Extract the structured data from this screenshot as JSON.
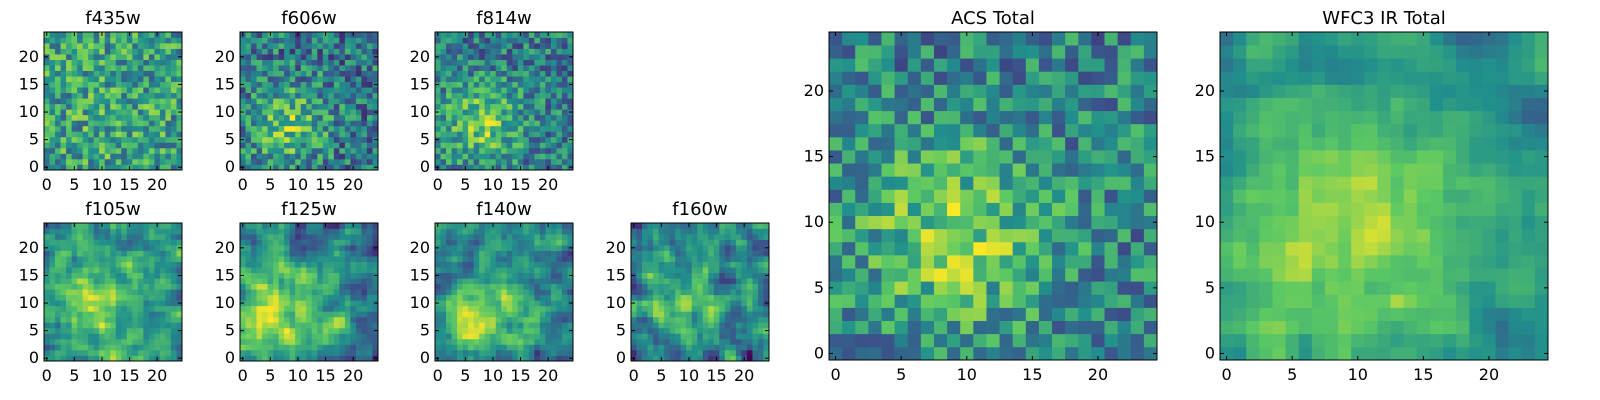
{
  "figure": {
    "colormap": [
      "#440154",
      "#3b528b",
      "#21908c",
      "#5dc963",
      "#fde725"
    ],
    "grid": false
  },
  "chart_data": [
    {
      "type": "heatmap",
      "title": "f435w",
      "size": 25,
      "xlim": [
        0,
        24
      ],
      "ylim": [
        0,
        24
      ],
      "xticks": [
        0,
        5,
        10,
        15,
        20
      ],
      "yticks": [
        0,
        5,
        10,
        15,
        20
      ],
      "blob": {
        "cx": 10,
        "cy": 10,
        "sigma": 8,
        "amp": 0.05
      },
      "noise": 0.55,
      "smooth": 0,
      "base": 0.55,
      "seed": 11
    },
    {
      "type": "heatmap",
      "title": "f606w",
      "size": 25,
      "xlim": [
        0,
        24
      ],
      "ylim": [
        0,
        24
      ],
      "xticks": [
        0,
        5,
        10,
        15,
        20
      ],
      "yticks": [
        0,
        5,
        10,
        15,
        20
      ],
      "blob": {
        "cx": 8,
        "cy": 8,
        "sigma": 5,
        "amp": 0.35
      },
      "noise": 0.55,
      "smooth": 0,
      "base": 0.4,
      "seed": 23
    },
    {
      "type": "heatmap",
      "title": "f814w",
      "size": 25,
      "xlim": [
        0,
        24
      ],
      "ylim": [
        0,
        24
      ],
      "xticks": [
        0,
        5,
        10,
        15,
        20
      ],
      "yticks": [
        0,
        5,
        10,
        15,
        20
      ],
      "blob": {
        "cx": 8,
        "cy": 8,
        "sigma": 5,
        "amp": 0.35
      },
      "noise": 0.5,
      "smooth": 0,
      "base": 0.42,
      "seed": 37
    },
    {
      "type": "heatmap",
      "title": "f105w",
      "size": 25,
      "xlim": [
        0,
        24
      ],
      "ylim": [
        0,
        24
      ],
      "xticks": [
        0,
        5,
        10,
        15,
        20
      ],
      "yticks": [
        0,
        5,
        10,
        15,
        20
      ],
      "blob": {
        "cx": 9,
        "cy": 10,
        "sigma": 7,
        "amp": 0.35
      },
      "noise": 0.6,
      "smooth": 1,
      "base": 0.45,
      "seed": 41
    },
    {
      "type": "heatmap",
      "title": "f125w",
      "size": 25,
      "xlim": [
        0,
        24
      ],
      "ylim": [
        0,
        24
      ],
      "xticks": [
        0,
        5,
        10,
        15,
        20
      ],
      "yticks": [
        0,
        5,
        10,
        15,
        20
      ],
      "blob": {
        "cx": 7,
        "cy": 7,
        "sigma": 7,
        "amp": 0.35
      },
      "noise": 0.6,
      "smooth": 1,
      "base": 0.45,
      "seed": 53
    },
    {
      "type": "heatmap",
      "title": "f140w",
      "size": 25,
      "xlim": [
        0,
        24
      ],
      "ylim": [
        0,
        24
      ],
      "xticks": [
        0,
        5,
        10,
        15,
        20
      ],
      "yticks": [
        0,
        5,
        10,
        15,
        20
      ],
      "blob": {
        "cx": 8,
        "cy": 8,
        "sigma": 6,
        "amp": 0.35
      },
      "noise": 0.6,
      "smooth": 1,
      "base": 0.45,
      "seed": 67
    },
    {
      "type": "heatmap",
      "title": "f160w",
      "size": 25,
      "xlim": [
        0,
        24
      ],
      "ylim": [
        0,
        24
      ],
      "xticks": [
        0,
        5,
        10,
        15,
        20
      ],
      "yticks": [
        0,
        5,
        10,
        15,
        20
      ],
      "blob": {
        "cx": 9,
        "cy": 10,
        "sigma": 6,
        "amp": 0.35
      },
      "noise": 0.7,
      "smooth": 1,
      "base": 0.4,
      "seed": 79
    },
    {
      "type": "heatmap",
      "title": "ACS Total",
      "size": 25,
      "xlim": [
        0,
        24
      ],
      "ylim": [
        0,
        24
      ],
      "xticks": [
        0,
        5,
        10,
        15,
        20
      ],
      "yticks": [
        0,
        5,
        10,
        15,
        20
      ],
      "blob": {
        "cx": 9,
        "cy": 9,
        "sigma": 5,
        "amp": 0.35
      },
      "noise": 0.5,
      "smooth": 0,
      "base": 0.45,
      "seed": 97
    },
    {
      "type": "heatmap",
      "title": "WFC3 IR Total",
      "size": 25,
      "xlim": [
        0,
        24
      ],
      "ylim": [
        0,
        24
      ],
      "xticks": [
        0,
        5,
        10,
        15,
        20
      ],
      "yticks": [
        0,
        5,
        10,
        15,
        20
      ],
      "blob": {
        "cx": 9,
        "cy": 9,
        "sigma": 8,
        "amp": 0.4
      },
      "noise": 0.35,
      "smooth": 1,
      "base": 0.45,
      "seed": 113
    }
  ]
}
